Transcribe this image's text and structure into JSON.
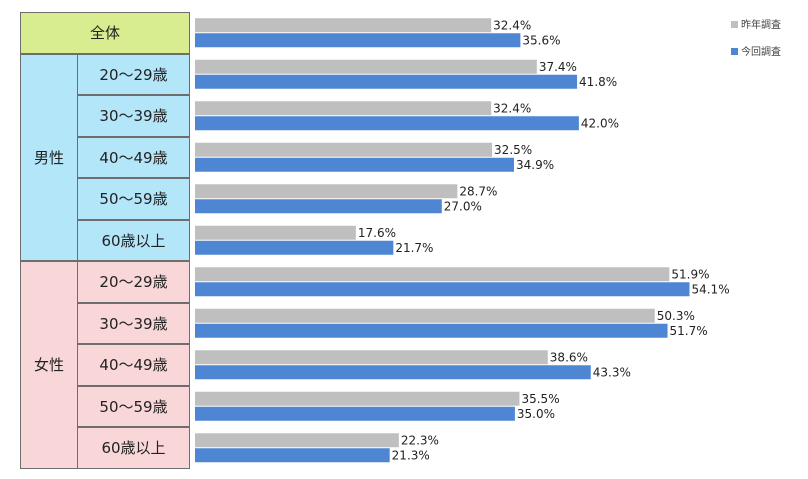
{
  "chart_data": {
    "type": "bar",
    "orientation": "horizontal",
    "groups": [
      {
        "label": "全体",
        "color": "#d8ec90",
        "rows": [
          {
            "label": "",
            "values": [
              32.4,
              35.6
            ]
          }
        ]
      },
      {
        "label": "男性",
        "color": "#b3e6f9",
        "rows": [
          {
            "label": "20～29歳",
            "values": [
              37.4,
              41.8
            ]
          },
          {
            "label": "30～39歳",
            "values": [
              32.4,
              42.0
            ]
          },
          {
            "label": "40～49歳",
            "values": [
              32.5,
              34.9
            ]
          },
          {
            "label": "50～59歳",
            "values": [
              28.7,
              27.0
            ]
          },
          {
            "label": "60歳以上",
            "values": [
              17.6,
              21.7
            ]
          }
        ]
      },
      {
        "label": "女性",
        "color": "#f9d7d8",
        "rows": [
          {
            "label": "20～29歳",
            "values": [
              51.9,
              54.1
            ]
          },
          {
            "label": "30～39歳",
            "values": [
              50.3,
              51.7
            ]
          },
          {
            "label": "40～49歳",
            "values": [
              38.6,
              43.3
            ]
          },
          {
            "label": "50～59歳",
            "values": [
              35.5,
              35.0
            ]
          },
          {
            "label": "60歳以上",
            "values": [
              22.3,
              21.3
            ]
          }
        ]
      }
    ],
    "series": [
      {
        "name": "昨年調査",
        "color": "#bfbfbf"
      },
      {
        "name": "今回調査",
        "color": "#4f86d3"
      }
    ],
    "value_format": "%",
    "xlim": [
      0,
      60
    ],
    "legend": "top-right",
    "grid": false
  }
}
